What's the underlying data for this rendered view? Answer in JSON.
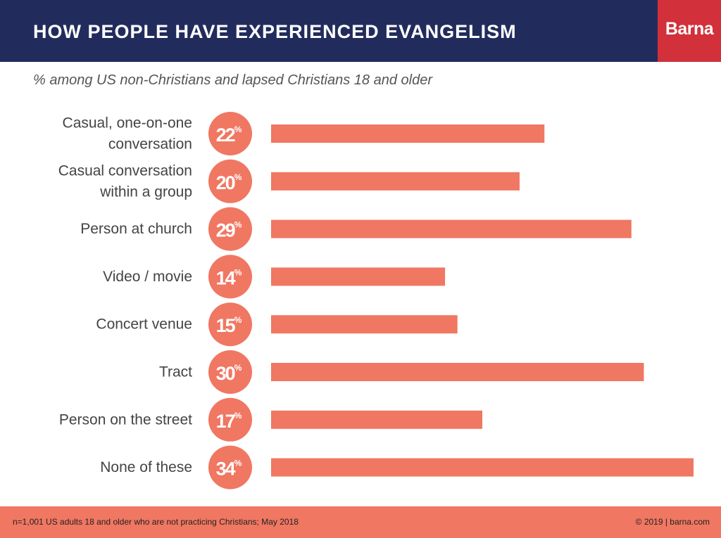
{
  "header": {
    "title": "HOW PEOPLE HAVE EXPERIENCED EVANGELISM",
    "logo_text": "Barna",
    "subtitle": "% among US non-Christians and lapsed Christians 18 and older"
  },
  "footer": {
    "note": "n=1,001 US adults 18 and older who are not practicing Christians; May 2018",
    "credit": "© 2019 | barna.com"
  },
  "colors": {
    "header_bg": "#222c5c",
    "logo_bg": "#d2303a",
    "accent": "#f07762",
    "label_text": "#444444"
  },
  "chart_data": {
    "type": "bar",
    "orientation": "horizontal",
    "categories": [
      [
        "Casual, one-on-one",
        "conversation"
      ],
      [
        "Casual conversation",
        "within a group"
      ],
      [
        "Person at church"
      ],
      [
        "Video / movie"
      ],
      [
        "Concert venue"
      ],
      [
        "Tract"
      ],
      [
        "Person on the street"
      ],
      [
        "None of these"
      ]
    ],
    "values": [
      22,
      20,
      29,
      14,
      15,
      30,
      17,
      34
    ],
    "value_labels": [
      "22",
      "20",
      "29",
      "14",
      "15",
      "30",
      "17",
      "34"
    ],
    "unit": "%",
    "xlim": [
      0,
      34
    ],
    "grid": false,
    "legend": "none"
  }
}
